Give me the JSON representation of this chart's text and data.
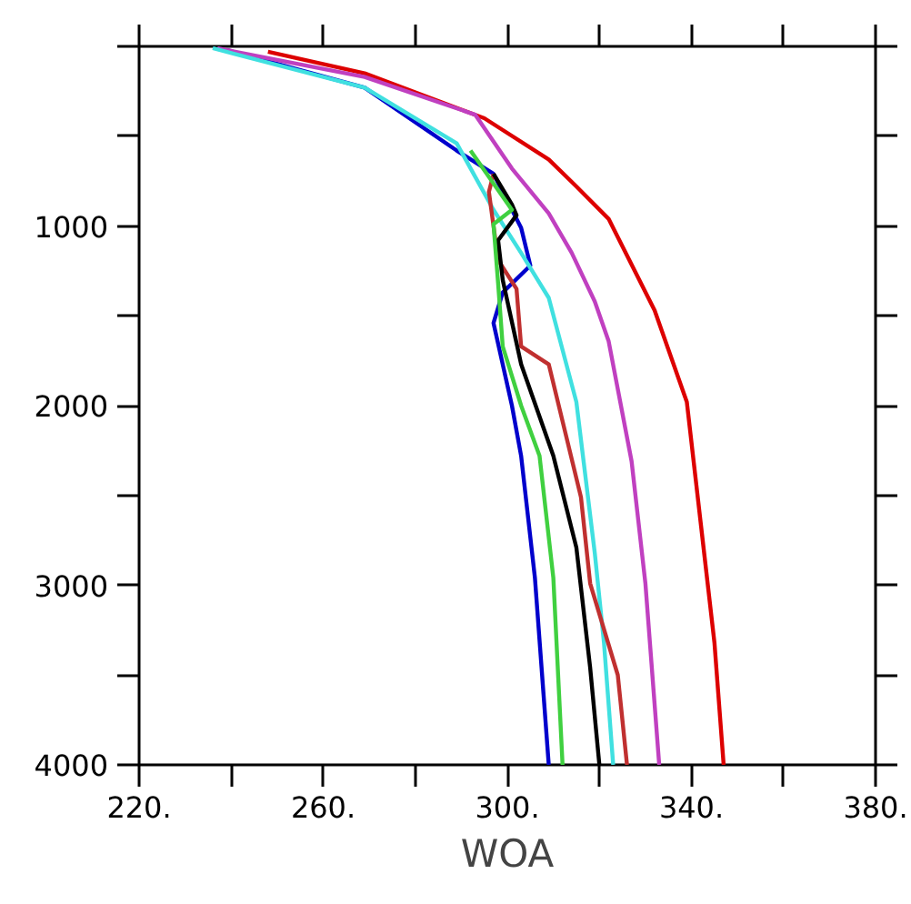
{
  "chart_data": {
    "type": "line",
    "xlabel": "WOA",
    "xlim": [
      220,
      380
    ],
    "ylim": [
      4000,
      0
    ],
    "xticks": [
      {
        "value": 220,
        "label": "220."
      },
      {
        "value": 240,
        "label": null
      },
      {
        "value": 260,
        "label": "260."
      },
      {
        "value": 280,
        "label": null
      },
      {
        "value": 300,
        "label": "300."
      },
      {
        "value": 320,
        "label": null
      },
      {
        "value": 340,
        "label": "340."
      },
      {
        "value": 360,
        "label": null
      },
      {
        "value": 380,
        "label": "380."
      }
    ],
    "yticks": [
      {
        "value": 0,
        "label": null
      },
      {
        "value": 500,
        "label": null
      },
      1000,
      {
        "value": 1500,
        "label": null
      },
      2000,
      {
        "value": 2500,
        "label": null
      },
      3000,
      {
        "value": 3500,
        "label": null
      },
      4000
    ],
    "marker": "none",
    "line_style": "solid",
    "series": [
      {
        "color": "#0000cc",
        "x": [
          239,
          269,
          289,
          297,
          303,
          305,
          299,
          297,
          301,
          303,
          306,
          309
        ],
        "values": [
          20,
          230,
          580,
          710,
          1010,
          1220,
          1370,
          1540,
          2000,
          2280,
          2960,
          4000
        ]
      },
      {
        "color": "#dd0000",
        "x": [
          248,
          269,
          295,
          309,
          315,
          322,
          332,
          339,
          342,
          345,
          347
        ],
        "values": [
          30,
          150,
          400,
          630,
          780,
          960,
          1470,
          1980,
          2650,
          3320,
          4000
        ]
      },
      {
        "color": "#c040c0",
        "x": [
          237,
          269,
          293,
          301,
          309,
          314,
          319,
          322,
          327,
          330,
          333
        ],
        "values": [
          10,
          170,
          380,
          680,
          930,
          1150,
          1420,
          1640,
          2310,
          2990,
          4000
        ]
      },
      {
        "color": "#40e0e0",
        "x": [
          236,
          269,
          289,
          297,
          303,
          309,
          315,
          319,
          321,
          323
        ],
        "values": [
          10,
          230,
          540,
          910,
          1150,
          1400,
          1980,
          2820,
          3320,
          4000
        ]
      },
      {
        "color": "#c03030",
        "x": [
          297,
          296,
          298,
          302,
          303,
          309,
          316,
          318,
          324,
          326
        ],
        "values": [
          710,
          810,
          1190,
          1350,
          1670,
          1770,
          2510,
          2990,
          3500,
          4000
        ]
      },
      {
        "color": "#000000",
        "x": [
          297,
          301,
          302,
          298,
          299,
          303,
          310,
          315,
          318,
          320
        ],
        "values": [
          710,
          880,
          940,
          1080,
          1300,
          1770,
          2280,
          2790,
          3460,
          4000
        ]
      },
      {
        "color": "#40d040",
        "x": [
          292,
          301,
          297,
          298,
          299,
          303,
          307,
          310,
          312
        ],
        "values": [
          580,
          910,
          990,
          1320,
          1670,
          2000,
          2280,
          2960,
          4000
        ]
      }
    ]
  }
}
